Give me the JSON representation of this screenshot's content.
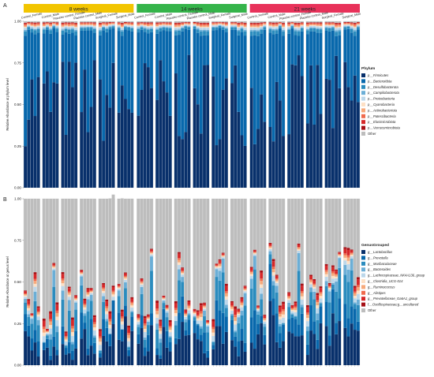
{
  "panel_labels": [
    "A",
    "B"
  ],
  "chart_data": [
    {
      "type": "bar",
      "stacked": true,
      "title": "",
      "ylabel": "Relative Abundance at phylum level",
      "ylim": [
        0,
        1
      ],
      "yticks": [
        "0.00",
        "0.25",
        "0.50",
        "0.75",
        "1.00"
      ],
      "facets": [
        {
          "name": "8 weeks",
          "color": "#f2c500",
          "groups": [
            "Control_Female",
            "Control_Male",
            "Placebo control_Female",
            "Placebo control_Male",
            "Surgical_Female",
            "Surgical_Male"
          ]
        },
        {
          "name": "14 weeks",
          "color": "#35b44a",
          "groups": [
            "Control_Female",
            "Control_Male",
            "Placebo control_Female",
            "Placebo control_Male",
            "Surgical_Female",
            "Surgical_Male"
          ]
        },
        {
          "name": "21 weeks",
          "color": "#e8325a",
          "groups": [
            "Control_Female",
            "Control_Male",
            "Placebo control_Female",
            "Placebo control_Male",
            "Surgical_Female",
            "Surgical_Male"
          ]
        }
      ],
      "bars_per_group": 5,
      "legend_title": "Phylum",
      "legend_position": "right",
      "series": [
        {
          "name": "p__Firmicutes",
          "color": "#08306b"
        },
        {
          "name": "p__Bacteroidota",
          "color": "#0868ac"
        },
        {
          "name": "p__Desulfobacterota",
          "color": "#2b8cbe"
        },
        {
          "name": "p__Campilobacterota",
          "color": "#6baed6"
        },
        {
          "name": "p__Proteobacteria",
          "color": "#bcd7ea"
        },
        {
          "name": "p__Cyanobacteria",
          "color": "#fde0c5"
        },
        {
          "name": "p__Actinobacteriota",
          "color": "#f7a97a"
        },
        {
          "name": "p__Patescibacteria",
          "color": "#f06a4c"
        },
        {
          "name": "p__Elusimicrobiota",
          "color": "#d62728"
        },
        {
          "name": "p__Verrucomicrobiota",
          "color": "#a50f15"
        },
        {
          "name": "Other",
          "color": "#bdbdbd"
        }
      ]
    },
    {
      "type": "bar",
      "stacked": true,
      "title": "",
      "ylabel": "Relative Abundance at genus level",
      "ylim": [
        0,
        1
      ],
      "yticks": [
        "0.00",
        "0.25",
        "0.50",
        "0.75",
        "1.00"
      ],
      "bars_per_group": 5,
      "legend_title": "GenusGrouped",
      "legend_position": "right",
      "series": [
        {
          "name": "g__Lactobacillus",
          "color": "#08306b"
        },
        {
          "name": "g__Prevotella",
          "color": "#0868ac"
        },
        {
          "name": "g__Muribaculaceae",
          "color": "#2b8cbe"
        },
        {
          "name": "g__Bacteroides",
          "color": "#6baed6"
        },
        {
          "name": "g__Lachnospiraceae_NK4A136_group",
          "color": "#bcd7ea"
        },
        {
          "name": "g__Clostridia_UCG-014",
          "color": "#fde0c5"
        },
        {
          "name": "g__Ruminococcus",
          "color": "#f7a97a"
        },
        {
          "name": "g__Alistipes",
          "color": "#f06a4c"
        },
        {
          "name": "g__Prevotellaceae_Ga6A1_group",
          "color": "#d62728"
        },
        {
          "name": "f__Oscillospiraceae;g__uncultured",
          "color": "#a50f15"
        },
        {
          "name": "Other",
          "color": "#bdbdbd"
        }
      ]
    }
  ]
}
